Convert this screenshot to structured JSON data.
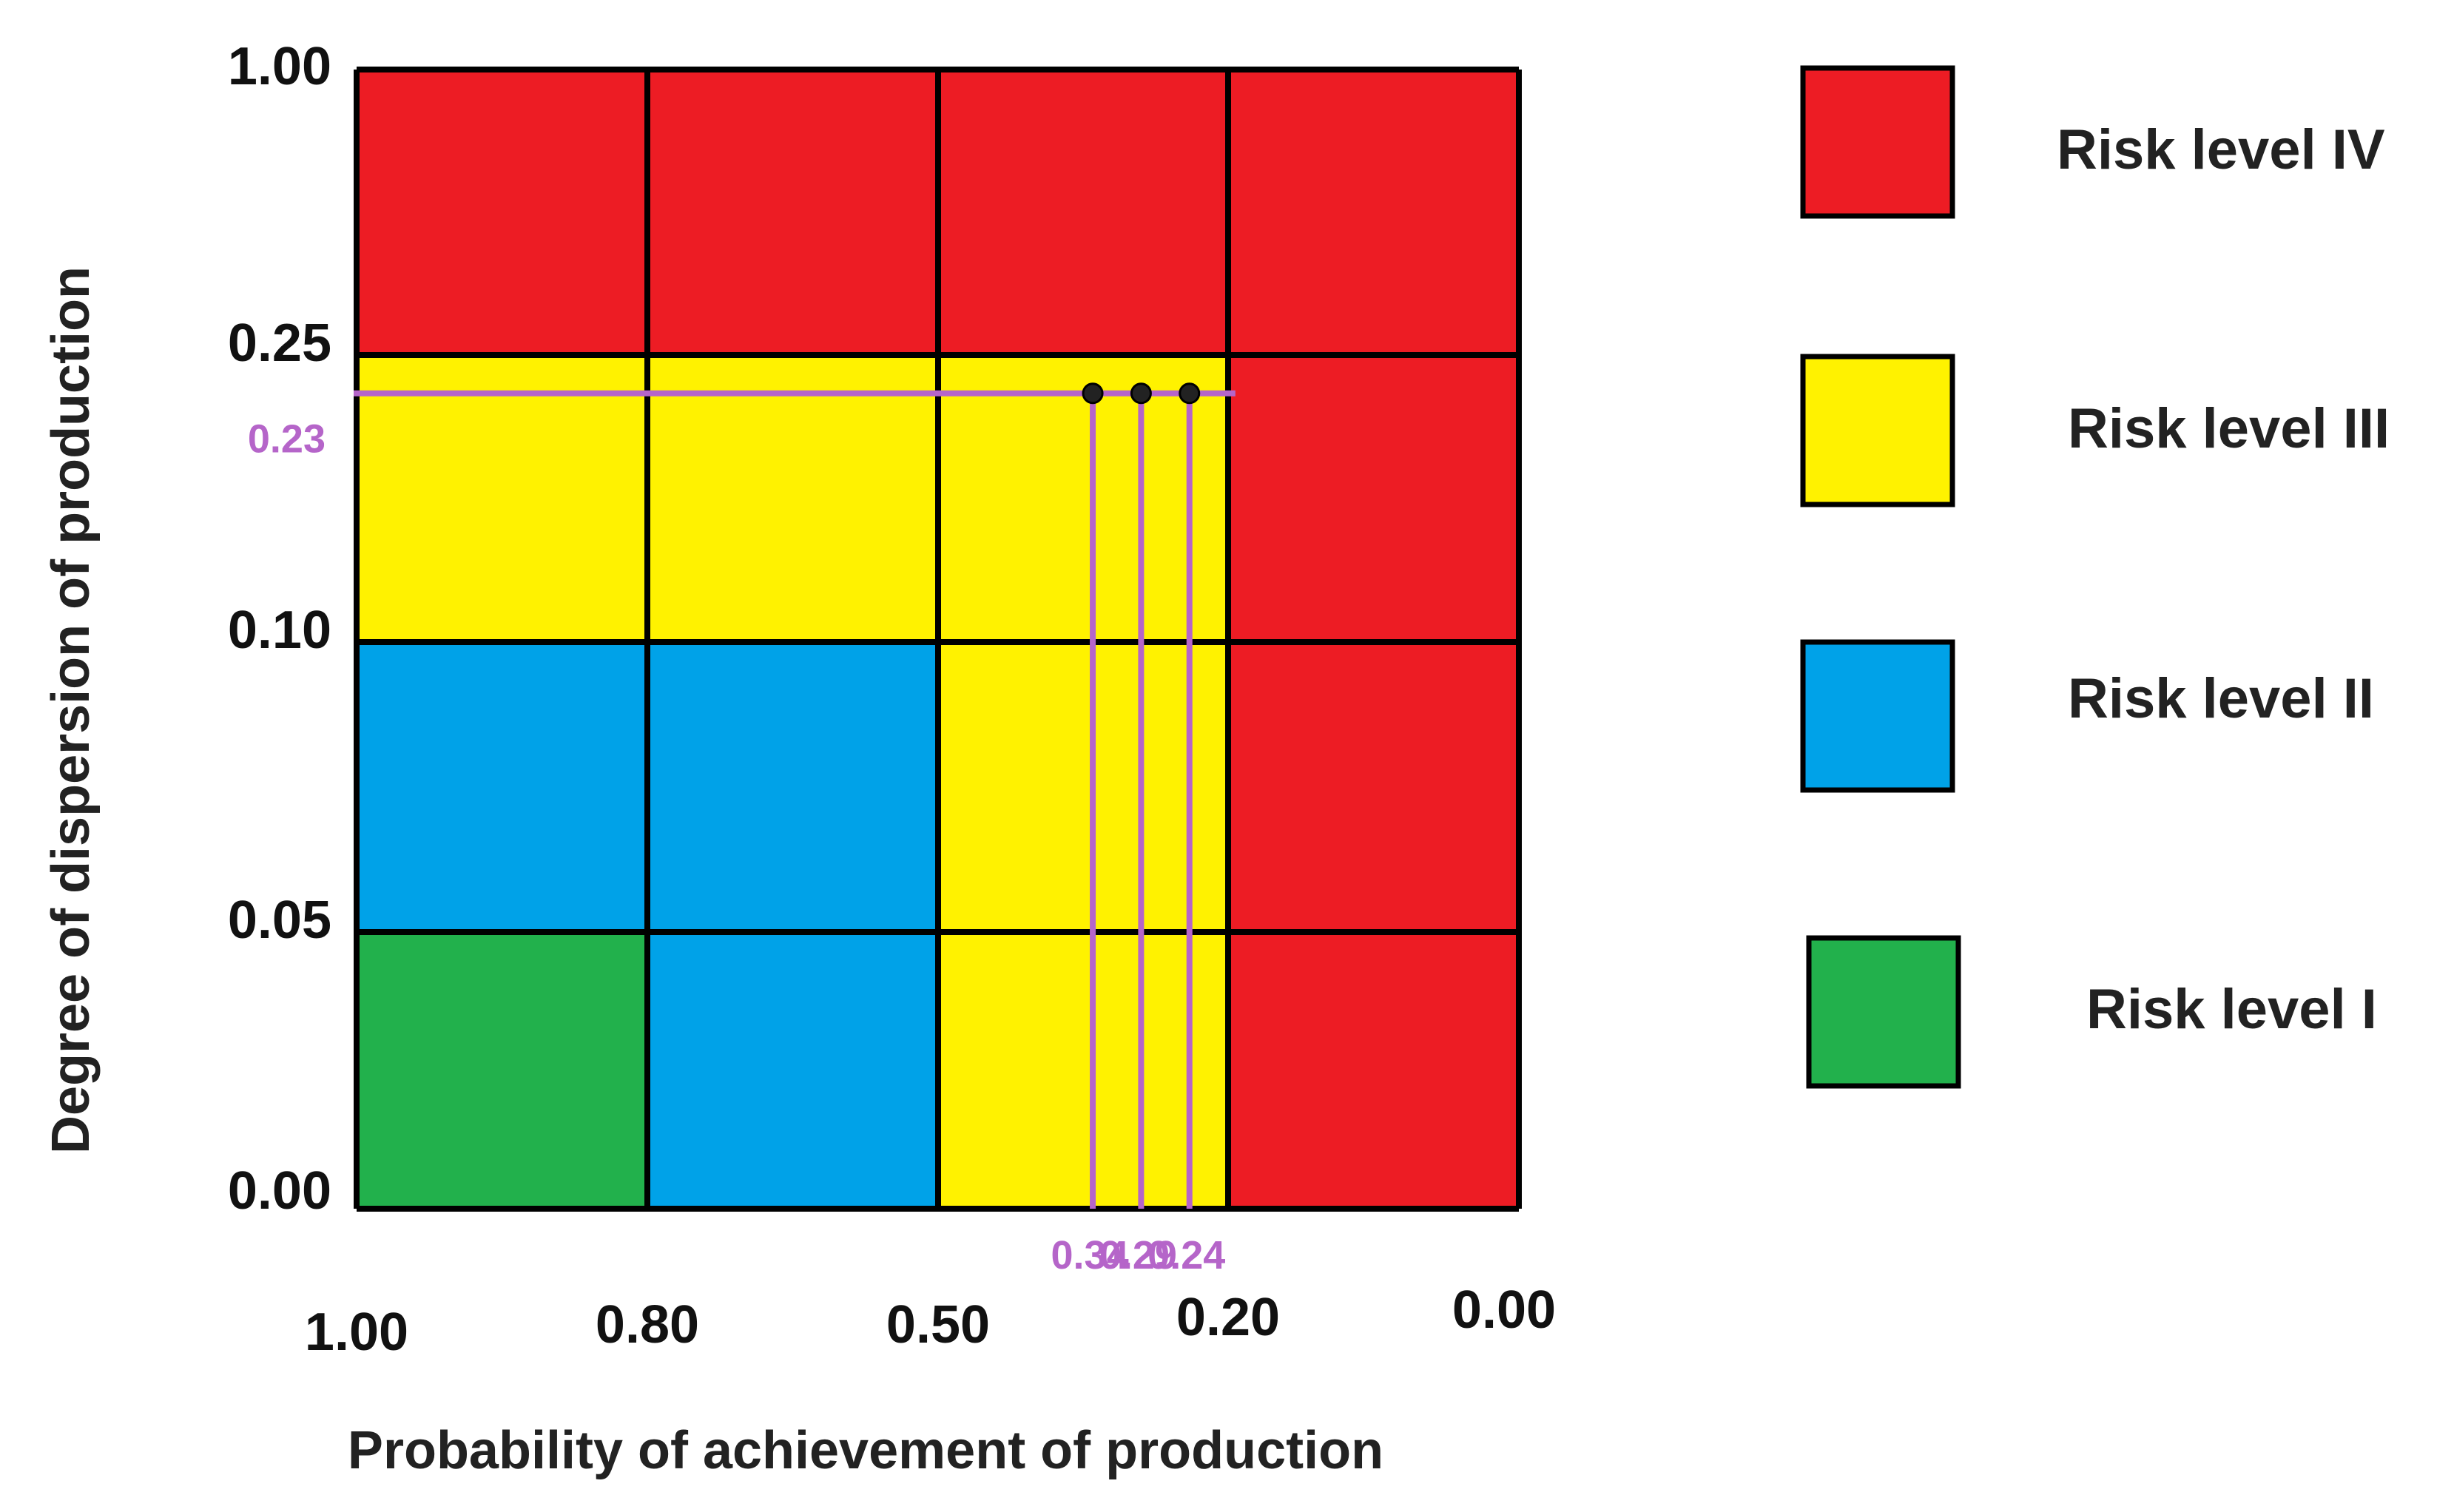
{
  "chart_data": {
    "type": "heatmap",
    "title": "",
    "xlabel": "Probability of achievement of production",
    "ylabel": "Degree of dispersion of production",
    "x_ticks": [
      "1.00",
      "0.80",
      "0.50",
      "0.20",
      "0.00"
    ],
    "y_ticks": [
      "1.00",
      "0.25",
      "0.10",
      "0.05",
      "0.00"
    ],
    "columns": [
      "1.00-0.80",
      "0.80-0.50",
      "0.50-0.20",
      "0.20-0.00"
    ],
    "rows": [
      "1.00-0.25",
      "0.25-0.10",
      "0.10-0.05",
      "0.05-0.00"
    ],
    "grid": [
      [
        "IV",
        "IV",
        "IV",
        "IV"
      ],
      [
        "III",
        "III",
        "III",
        "IV"
      ],
      [
        "II",
        "II",
        "III",
        "IV"
      ],
      [
        "I",
        "II",
        "III",
        "IV"
      ]
    ],
    "levels": [
      {
        "id": "IV",
        "label": "Risk level IV",
        "color": "#ED1C24"
      },
      {
        "id": "III",
        "label": "Risk level III",
        "color": "#FFF200"
      },
      {
        "id": "II",
        "label": "Risk level II",
        "color": "#00A2E8"
      },
      {
        "id": "I",
        "label": "Risk level I",
        "color": "#22B14C"
      }
    ],
    "points": [
      {
        "x": 0.34,
        "y": 0.23,
        "x_label": "0.34"
      },
      {
        "x": 0.29,
        "y": 0.23,
        "x_label": "0.29"
      },
      {
        "x": 0.24,
        "y": 0.23,
        "x_label": "0.24"
      }
    ],
    "reference_line": {
      "y": 0.23,
      "label": "0.23"
    },
    "annotation_color": "#B565C9",
    "legend_position": "right"
  }
}
